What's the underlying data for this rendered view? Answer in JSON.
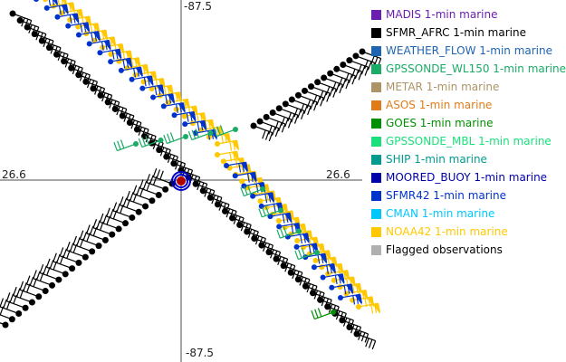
{
  "axes": {
    "top_lon": "-87.5",
    "bottom_lon": "-87.5",
    "left_lat": "26.6",
    "right_lat": "26.6"
  },
  "legend": [
    {
      "label": "MADIS 1-min marine",
      "color": "#6a1fb0"
    },
    {
      "label": "SFMR_AFRC 1-min marine",
      "color": "#000000"
    },
    {
      "label": "WEATHER_FLOW 1-min marine",
      "color": "#1f64b0"
    },
    {
      "label": "GPSSONDE_WL150 1-min marine",
      "color": "#1aab66"
    },
    {
      "label": "METAR 1-min marine",
      "color": "#ad9466"
    },
    {
      "label": "ASOS 1-min marine",
      "color": "#e07b1a"
    },
    {
      "label": "GOES 1-min marine",
      "color": "#008f00"
    },
    {
      "label": "GPSSONDE_MBL 1-min marine",
      "color": "#1ae07b"
    },
    {
      "label": "SHIP 1-min marine",
      "color": "#009a8f"
    },
    {
      "label": "MOORED_BUOY 1-min marine",
      "color": "#0000a8"
    },
    {
      "label": "SFMR42 1-min marine",
      "color": "#0033cc"
    },
    {
      "label": "CMAN 1-min marine",
      "color": "#00c8ff"
    },
    {
      "label": "NOAA42 1-min marine",
      "color": "#ffc800"
    },
    {
      "label": "Flagged observations",
      "color": "#b0b0b0"
    }
  ],
  "chart_data": {
    "type": "scatter",
    "title": "",
    "center": {
      "lon": -87.5,
      "lat": 26.6
    },
    "xlim": [
      -88.5,
      -86.5
    ],
    "ylim": [
      25.6,
      27.6
    ],
    "series": [
      {
        "name": "SFMR_AFRC 1-min marine",
        "color": "#000000",
        "segments": [
          {
            "start": [
              -88.43,
              27.52
            ],
            "end": [
              -86.53,
              25.75
            ],
            "n": 48
          },
          {
            "start": [
              -88.47,
              25.8
            ],
            "end": [
              -87.55,
              26.58
            ],
            "n": 26
          },
          {
            "start": [
              -87.1,
              26.9
            ],
            "end": [
              -86.5,
              27.31
            ],
            "n": 18
          }
        ]
      },
      {
        "name": "NOAA42 1-min marine",
        "color": "#ffc800",
        "segments": [
          {
            "start": [
              -88.25,
              27.6
            ],
            "end": [
              -87.3,
              26.8
            ],
            "n": 22
          },
          {
            "start": [
              -87.3,
              26.74
            ],
            "end": [
              -86.52,
              25.9
            ],
            "n": 24
          }
        ]
      },
      {
        "name": "SFMR42 1-min marine",
        "color": "#0033cc",
        "segments": [
          {
            "start": [
              -88.3,
              27.6
            ],
            "end": [
              -87.42,
              26.86
            ],
            "n": 16
          },
          {
            "start": [
              -87.25,
              26.68
            ],
            "end": [
              -86.62,
              25.95
            ],
            "n": 14
          }
        ]
      },
      {
        "name": "GPSSONDE_WL150 1-min marine",
        "color": "#1aab66",
        "segments": [
          {
            "start": [
              -87.75,
              26.8
            ],
            "end": [
              -87.2,
              26.88
            ],
            "n": 5
          },
          {
            "start": [
              -87.05,
              26.55
            ],
            "end": [
              -86.75,
              26.2
            ],
            "n": 4
          }
        ]
      },
      {
        "name": "GOES 1-min marine",
        "color": "#008f00",
        "segments": [
          {
            "start": [
              -86.66,
              25.87
            ],
            "end": [
              -86.66,
              25.87
            ],
            "n": 1
          }
        ]
      }
    ],
    "storm_center": {
      "lon": -87.5,
      "lat": 26.6
    }
  }
}
